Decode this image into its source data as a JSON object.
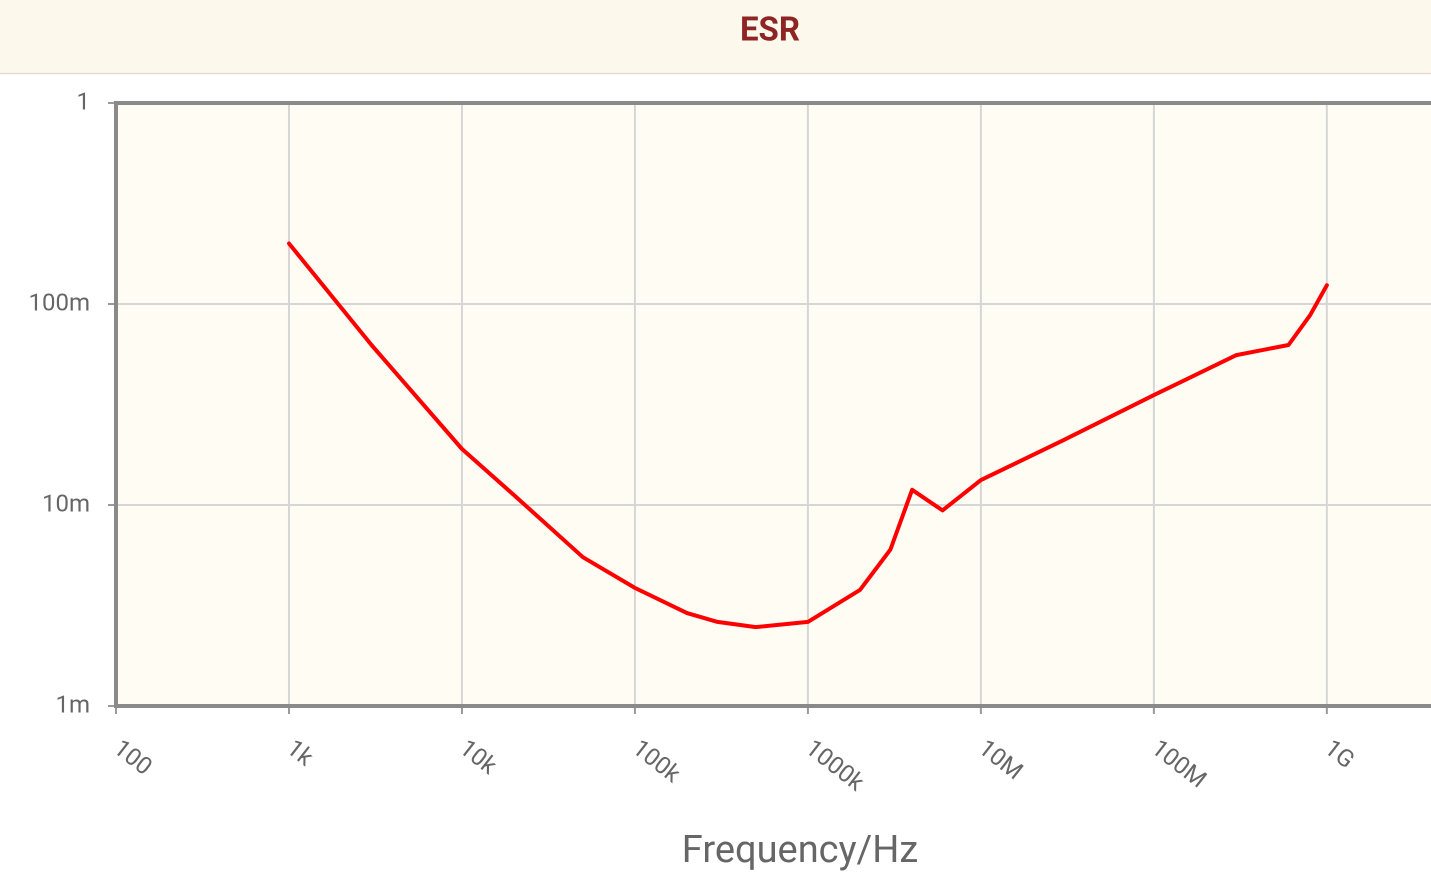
{
  "chart_data": {
    "type": "line",
    "title": "ESR",
    "x_label": "Frequency/Hz",
    "x_scale": "log",
    "y_scale": "log",
    "grid": true,
    "color": "#ff0000",
    "x": [
      1000,
      3000,
      10000,
      20000,
      50000,
      100000,
      200000,
      300000,
      500000,
      1000000,
      2000000,
      3000000,
      4000000,
      6000000,
      10000000,
      30000000,
      100000000,
      300000000,
      600000000,
      800000000,
      1000000000
    ],
    "values": [
      0.2,
      0.0625,
      0.019,
      0.0112,
      0.0055,
      0.00387,
      0.0029,
      0.00262,
      0.00247,
      0.00262,
      0.00378,
      0.006,
      0.0119,
      0.0094,
      0.0133,
      0.021,
      0.0352,
      0.0557,
      0.0625,
      0.088,
      0.124
    ],
    "xlim": [
      100,
      4000000000
    ],
    "ylim": [
      0.001,
      1
    ],
    "xticks": [
      {
        "value": 100,
        "label": "100"
      },
      {
        "value": 1000,
        "label": "1k"
      },
      {
        "value": 10000,
        "label": "10k"
      },
      {
        "value": 100000,
        "label": "100k"
      },
      {
        "value": 1000000,
        "label": "1000k"
      },
      {
        "value": 10000000,
        "label": "10M"
      },
      {
        "value": 100000000,
        "label": "100M"
      },
      {
        "value": 1000000000,
        "label": "1G"
      }
    ],
    "yticks": [
      {
        "value": 0.001,
        "label": "1m"
      },
      {
        "value": 0.01,
        "label": "10m"
      },
      {
        "value": 0.1,
        "label": "100m"
      },
      1
    ]
  }
}
